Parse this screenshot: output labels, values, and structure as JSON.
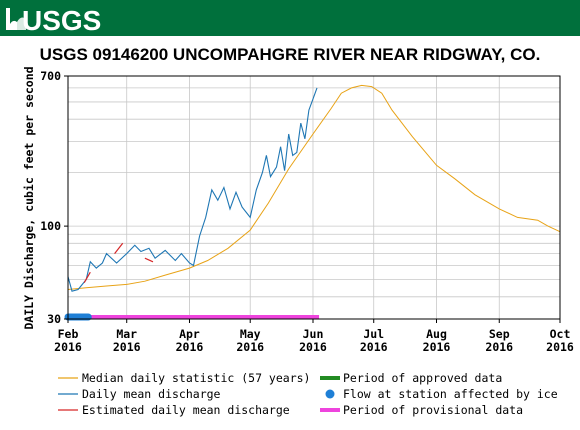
{
  "header": {
    "logo_text": "USGS",
    "brand_color": "#00703c"
  },
  "chart_data": {
    "type": "line",
    "title": "USGS 09146200 UNCOMPAHGRE RIVER NEAR RIDGWAY, CO.",
    "xlabel": "",
    "ylabel": "DAILY Discharge, cubic feet per second",
    "y_scale": "log",
    "ylim": [
      30,
      700
    ],
    "xlim": [
      "2016-02-01",
      "2016-10-01"
    ],
    "grid": true,
    "y_ticks": [
      {
        "value": 30,
        "label": "30"
      },
      {
        "value": 100,
        "label": "100"
      },
      {
        "value": 700,
        "label": "700"
      }
    ],
    "x_ticks": [
      {
        "date": "2016-02-01",
        "month": "Feb",
        "year": "2016"
      },
      {
        "date": "2016-03-01",
        "month": "Mar",
        "year": "2016"
      },
      {
        "date": "2016-04-01",
        "month": "Apr",
        "year": "2016"
      },
      {
        "date": "2016-05-01",
        "month": "May",
        "year": "2016"
      },
      {
        "date": "2016-06-01",
        "month": "Jun",
        "year": "2016"
      },
      {
        "date": "2016-07-01",
        "month": "Jul",
        "year": "2016"
      },
      {
        "date": "2016-08-01",
        "month": "Aug",
        "year": "2016"
      },
      {
        "date": "2016-09-01",
        "month": "Sep",
        "year": "2016"
      },
      {
        "date": "2016-10-01",
        "month": "Oct",
        "year": "2016"
      }
    ],
    "series": [
      {
        "name": "Median daily statistic (57 years)",
        "color": "#e8a317",
        "points": [
          [
            "2016-02-01",
            44
          ],
          [
            "2016-02-10",
            45
          ],
          [
            "2016-02-20",
            46
          ],
          [
            "2016-03-01",
            47
          ],
          [
            "2016-03-10",
            49
          ],
          [
            "2016-03-20",
            53
          ],
          [
            "2016-04-01",
            58
          ],
          [
            "2016-04-10",
            64
          ],
          [
            "2016-04-20",
            75
          ],
          [
            "2016-05-01",
            95
          ],
          [
            "2016-05-10",
            135
          ],
          [
            "2016-05-20",
            210
          ],
          [
            "2016-06-01",
            330
          ],
          [
            "2016-06-10",
            460
          ],
          [
            "2016-06-15",
            560
          ],
          [
            "2016-06-20",
            600
          ],
          [
            "2016-06-25",
            620
          ],
          [
            "2016-06-30",
            610
          ],
          [
            "2016-07-05",
            560
          ],
          [
            "2016-07-10",
            450
          ],
          [
            "2016-07-20",
            320
          ],
          [
            "2016-08-01",
            220
          ],
          [
            "2016-08-10",
            185
          ],
          [
            "2016-08-20",
            150
          ],
          [
            "2016-09-01",
            125
          ],
          [
            "2016-09-10",
            112
          ],
          [
            "2016-09-20",
            108
          ],
          [
            "2016-09-25",
            100
          ],
          [
            "2016-10-01",
            93
          ]
        ]
      },
      {
        "name": "Daily mean discharge",
        "color": "#1f77b4",
        "points": [
          [
            "2016-02-01",
            52
          ],
          [
            "2016-02-03",
            43
          ],
          [
            "2016-02-06",
            44
          ],
          [
            "2016-02-10",
            50
          ],
          [
            "2016-02-12",
            63
          ],
          [
            "2016-02-15",
            58
          ],
          [
            "2016-02-18",
            62
          ],
          [
            "2016-02-20",
            70
          ],
          [
            "2016-02-25",
            62
          ],
          [
            "2016-03-01",
            70
          ],
          [
            "2016-03-05",
            78
          ],
          [
            "2016-03-08",
            72
          ],
          [
            "2016-03-12",
            75
          ],
          [
            "2016-03-15",
            66
          ],
          [
            "2016-03-20",
            73
          ],
          [
            "2016-03-25",
            64
          ],
          [
            "2016-03-28",
            70
          ],
          [
            "2016-04-01",
            62
          ],
          [
            "2016-04-03",
            60
          ],
          [
            "2016-04-06",
            88
          ],
          [
            "2016-04-09",
            112
          ],
          [
            "2016-04-12",
            160
          ],
          [
            "2016-04-15",
            140
          ],
          [
            "2016-04-18",
            165
          ],
          [
            "2016-04-21",
            125
          ],
          [
            "2016-04-24",
            155
          ],
          [
            "2016-04-27",
            128
          ],
          [
            "2016-05-01",
            112
          ],
          [
            "2016-05-04",
            160
          ],
          [
            "2016-05-07",
            200
          ],
          [
            "2016-05-09",
            250
          ],
          [
            "2016-05-11",
            190
          ],
          [
            "2016-05-14",
            215
          ],
          [
            "2016-05-16",
            280
          ],
          [
            "2016-05-18",
            205
          ],
          [
            "2016-05-20",
            330
          ],
          [
            "2016-05-22",
            250
          ],
          [
            "2016-05-24",
            260
          ],
          [
            "2016-05-26",
            380
          ],
          [
            "2016-05-28",
            310
          ],
          [
            "2016-05-30",
            450
          ],
          [
            "2016-06-01",
            520
          ],
          [
            "2016-06-03",
            600
          ]
        ]
      },
      {
        "name": "Estimated daily mean discharge",
        "color": "#d62728",
        "segments": [
          [
            [
              "2016-02-09",
              48
            ],
            [
              "2016-02-12",
              55
            ]
          ],
          [
            [
              "2016-02-24",
              70
            ],
            [
              "2016-02-28",
              80
            ]
          ],
          [
            [
              "2016-03-10",
              66
            ],
            [
              "2016-03-14",
              63
            ]
          ]
        ]
      }
    ],
    "periods": [
      {
        "name": "Period of approved data",
        "color": "#228b22",
        "range": []
      },
      {
        "name": "Period of provisional data",
        "color": "#ee44dd",
        "range": [
          "2016-02-01",
          "2016-06-04"
        ]
      }
    ],
    "markers": [
      {
        "name": "Flow at station affected by ice",
        "color": "#1e7fd6",
        "range": [
          "2016-02-01",
          "2016-02-11"
        ]
      }
    ],
    "legend_position": "bottom"
  }
}
